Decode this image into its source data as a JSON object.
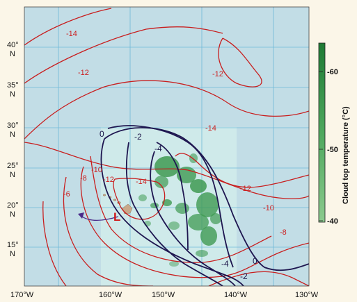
{
  "map": {
    "lon_ticks": [
      "170°W",
      "160°W",
      "150°W",
      "140°W",
      "130°W"
    ],
    "lat_ticks": [
      {
        "deg": "40°",
        "hem": "N"
      },
      {
        "deg": "35°",
        "hem": "N"
      },
      {
        "deg": "30°",
        "hem": "N"
      },
      {
        "deg": "25°",
        "hem": "N"
      },
      {
        "deg": "20°",
        "hem": "N"
      },
      {
        "deg": "15°",
        "hem": "N"
      }
    ],
    "low_marker": "L",
    "red_contour_labels": [
      "-14",
      "-12",
      "-12",
      "-14",
      "-10",
      "-12",
      "-14",
      "-8",
      "-6",
      "-12",
      "-10",
      "-8"
    ],
    "blue_contour_labels": [
      "0",
      "-2",
      "-4",
      "-4",
      "-2",
      "0"
    ],
    "colors": {
      "ocean": "#c2dde6",
      "analysis_area": "#cfeaea",
      "grid": "#6fb8d8",
      "red_contour": "#c81e1e",
      "blue_contour": "#1e1650",
      "cloud": "#3f9a52"
    }
  },
  "colorbar": {
    "title": "Cloud top temperature (°C)",
    "ticks": [
      "-60",
      "-50",
      "-40"
    ],
    "colors": [
      "#1e7a34",
      "#4fa85e",
      "#8cca8e"
    ]
  }
}
